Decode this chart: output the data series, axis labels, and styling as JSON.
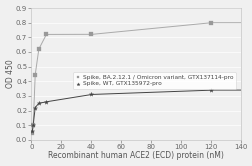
{
  "xlabel": "Recombinant human ACE2 (ECD) protein (nM)",
  "ylabel": "OD 450",
  "xlim": [
    0,
    140
  ],
  "ylim": [
    0,
    0.9
  ],
  "xticks": [
    0,
    20,
    40,
    60,
    80,
    100,
    120,
    140
  ],
  "yticks": [
    0,
    0.1,
    0.2,
    0.3,
    0.4,
    0.5,
    0.6,
    0.7,
    0.8,
    0.9
  ],
  "series1_label": "Spike, BA.2.12.1 / Omicron variant, GTX137114-pro",
  "series2_label": "Spike, WT, GTX135972-pro",
  "series1_x": [
    0.625,
    1.25,
    2.5,
    5,
    10,
    40,
    120
  ],
  "series1_y": [
    0.05,
    0.1,
    0.44,
    0.62,
    0.72,
    0.72,
    0.8
  ],
  "series2_x": [
    0.625,
    1.25,
    2.5,
    5,
    10,
    40,
    120
  ],
  "series2_y": [
    0.06,
    0.1,
    0.22,
    0.25,
    0.26,
    0.31,
    0.34
  ],
  "series1_color": "#999999",
  "series2_color": "#444444",
  "series1_fit_color": "#aaaaaa",
  "series2_fit_color": "#444444",
  "series1_marker": "s",
  "series2_marker": "*",
  "bg_color": "#f0f0f0",
  "plot_bg_color": "#f0f0f0",
  "legend_fontsize": 4.2,
  "axis_fontsize": 5.5,
  "tick_fontsize": 5,
  "ylabel_fontsize": 5.5
}
